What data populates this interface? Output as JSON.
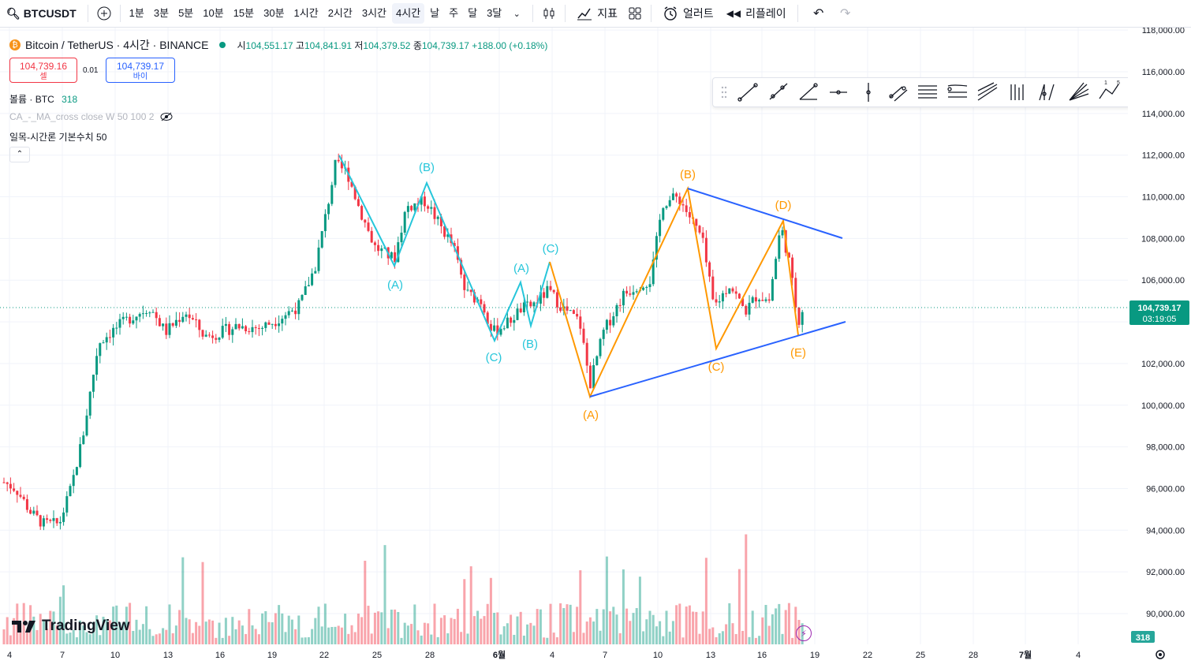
{
  "toolbar": {
    "symbol": "BTCUSDT",
    "timeframes": [
      "1분",
      "3분",
      "5분",
      "10분",
      "15분",
      "30분",
      "1시간",
      "2시간",
      "3시간",
      "4시간",
      "날",
      "주",
      "달",
      "3달"
    ],
    "active_timeframe": "4시간",
    "indicators_label": "지표",
    "alert_label": "얼러트",
    "replay_label": "리플레이"
  },
  "legend": {
    "title": "Bitcoin / TetherUS · 4시간 · BINANCE",
    "o_label": "시",
    "o": "104,551.17",
    "h_label": "고",
    "h": "104,841.91",
    "l_label": "저",
    "l": "104,379.52",
    "c_label": "종",
    "c": "104,739.17",
    "change": "+188.00 (+0.18%)"
  },
  "trade": {
    "sell_price": "104,739.16",
    "sell_label": "셀",
    "spread": "0.01",
    "buy_price": "104,739.17",
    "buy_label": "바이"
  },
  "indicators": {
    "volume_label": "볼륨 · BTC",
    "volume_value": "318",
    "ma_label": "CA_-_MA_cross close W 50 100 2",
    "ichimoku_label": "일목-시간론 기본수치 50"
  },
  "price_axis": {
    "labels": [
      "116,000.00",
      "114,000.00",
      "112,000.00",
      "110,000.00",
      "108,000.00",
      "106,000.00",
      "102,000.00",
      "100,000.00",
      "98,000.00",
      "96,000.00",
      "94,000.00",
      "92,000.00",
      "90,000.00"
    ],
    "top_partial": "118,000.00",
    "current_price": "104,739.17",
    "countdown": "03:19:05",
    "volume_badge": "318"
  },
  "time_axis": {
    "labels": [
      "4",
      "7",
      "10",
      "13",
      "16",
      "19",
      "22",
      "25",
      "28",
      "6월",
      "4",
      "7",
      "10",
      "13",
      "16",
      "19",
      "22",
      "25",
      "28",
      "7월",
      "4"
    ]
  },
  "wave_labels": {
    "a1": "(A)",
    "b1": "(B)",
    "c1": "(C)",
    "a2": "(A)",
    "b2": "(B)",
    "c2": "(C)",
    "ta": "(A)",
    "tb": "(B)",
    "tc": "(C)",
    "td": "(D)",
    "te": "(E)"
  },
  "logo_text": "TradingView",
  "colors": {
    "up": "#089981",
    "down": "#f23645",
    "wave_teal": "#26c6da",
    "wave_orange": "#ff9800",
    "trendline": "#2962ff"
  },
  "chart_data": {
    "type": "candlestick",
    "price_range": [
      89000,
      118000
    ],
    "triangle_points": [
      {
        "label": "(A)",
        "price": 100500
      },
      {
        "label": "(B)",
        "price": 110400
      },
      {
        "label": "(C)",
        "price": 102700
      },
      {
        "label": "(D)",
        "price": 108900
      },
      {
        "label": "(E)",
        "price": 103400
      }
    ]
  }
}
